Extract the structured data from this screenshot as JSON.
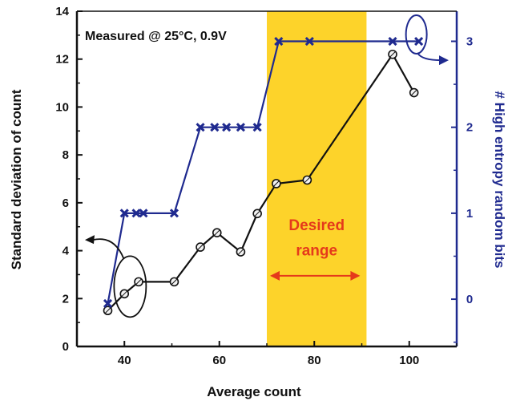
{
  "chart_data": {
    "type": "line",
    "annotation": "Measured @ 25°C, 0.9V",
    "xlabel": "Average count",
    "ylabel_left": "Standard deviation of count",
    "ylabel_right": "# High entropy random bits",
    "xlim": [
      30,
      110
    ],
    "ylim_left": [
      0,
      14
    ],
    "ylim_right": [
      -0.55,
      3.35
    ],
    "x_ticks": [
      40,
      60,
      80,
      100
    ],
    "y_ticks_left": [
      0,
      2,
      4,
      6,
      8,
      10,
      12,
      14
    ],
    "y_ticks_right": [
      0,
      1,
      2,
      3
    ],
    "highlight_region": {
      "x_range": [
        70,
        91
      ],
      "label_line1": "Desired",
      "label_line2": "range"
    },
    "colors": {
      "std_series": "#111111",
      "bits_series": "#1f2a8f",
      "highlight": "#fdd32a",
      "range_label": "#e53a1b",
      "right_axis": "#1f2a8f"
    },
    "series": [
      {
        "axis": "left",
        "x": [
          36.5,
          40,
          43,
          50.5,
          56,
          59.5,
          64.5,
          68,
          72,
          78.5,
          96.5,
          101
        ],
        "values": [
          1.5,
          2.2,
          2.7,
          2.7,
          4.15,
          4.75,
          3.95,
          5.55,
          6.8,
          6.95,
          12.2,
          10.6
        ]
      },
      {
        "axis": "right",
        "x": [
          36.5,
          40,
          42.5,
          44,
          50.5,
          56,
          59,
          61.5,
          64.5,
          68,
          72.5,
          79,
          96.5,
          102
        ],
        "values": [
          -0.05,
          1,
          1,
          1,
          1,
          2,
          2,
          2,
          2,
          2,
          3,
          3,
          3,
          3
        ]
      }
    ]
  }
}
